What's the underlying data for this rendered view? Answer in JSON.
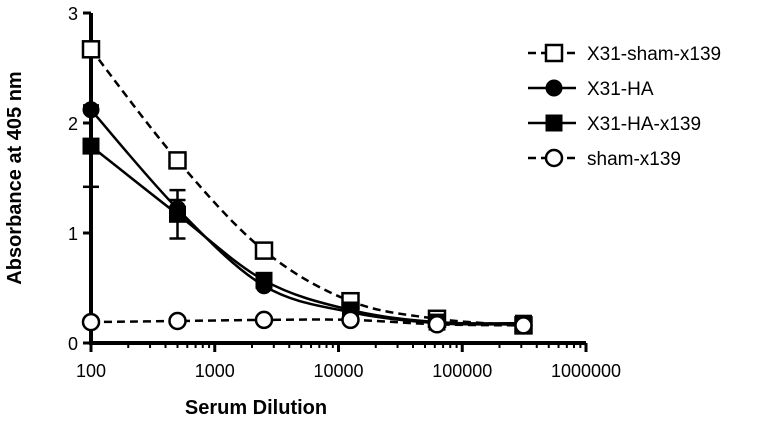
{
  "chart_data": {
    "type": "line",
    "title": "",
    "xlabel": "Serum Dilution",
    "ylabel": "Absorbance at 405 nm",
    "x_scale": "log",
    "xlim": [
      100,
      1000000
    ],
    "ylim": [
      0,
      3
    ],
    "x_ticks": [
      100,
      1000,
      10000,
      100000,
      1000000
    ],
    "x_tick_labels": [
      "100",
      "1000",
      "10000",
      "100000",
      "1000000"
    ],
    "y_ticks": [
      0,
      1,
      2,
      3
    ],
    "y_tick_labels": [
      "0",
      "1",
      "2",
      "3"
    ],
    "grid": false,
    "legend_position": "top-right",
    "x": [
      100,
      500,
      2500,
      12500,
      62500,
      312500
    ],
    "series": [
      {
        "name": "X31-sham-x139",
        "marker": "open-square",
        "line": "dashed",
        "values": [
          2.67,
          1.66,
          0.84,
          0.38,
          0.22,
          0.16
        ]
      },
      {
        "name": "X31-HA",
        "marker": "filled-circle",
        "line": "solid",
        "values": [
          2.12,
          1.22,
          0.52,
          0.28,
          0.18,
          0.17
        ],
        "error": [
          0,
          0.08,
          0,
          0,
          0,
          0
        ]
      },
      {
        "name": "X31-HA-x139",
        "marker": "filled-square",
        "line": "solid",
        "values": [
          1.79,
          1.17,
          0.57,
          0.3,
          0.19,
          0.18
        ],
        "error": [
          0.37,
          0.22,
          0,
          0,
          0,
          0
        ]
      },
      {
        "name": "sham-x139",
        "marker": "open-circle",
        "line": "dashed",
        "values": [
          0.19,
          0.2,
          0.21,
          0.21,
          0.17,
          0.16
        ]
      }
    ]
  }
}
